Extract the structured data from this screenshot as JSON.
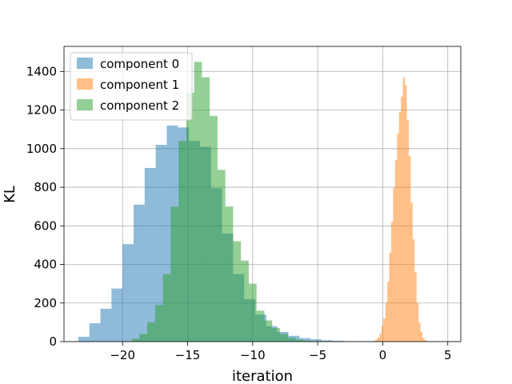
{
  "chart_data": {
    "type": "histogram",
    "title": "",
    "xlabel": "iteration",
    "ylabel": "KL",
    "xlim": [
      -24.5,
      6.0
    ],
    "ylim": [
      0,
      1530
    ],
    "xticks": [
      -20,
      -15,
      -10,
      -5,
      0,
      5
    ],
    "xtick_labels": [
      "−20",
      "−15",
      "−10",
      "−5",
      "0",
      "5"
    ],
    "yticks": [
      0,
      200,
      400,
      600,
      800,
      1000,
      1200,
      1400
    ],
    "ytick_labels": [
      "0",
      "200",
      "400",
      "600",
      "800",
      "1000",
      "1200",
      "1400"
    ],
    "grid": true,
    "legend_position": "top-left",
    "series": [
      {
        "name": "component 0",
        "color": "#1f77b4",
        "alpha": 0.5,
        "bin_start": -23.4,
        "bin_width": 0.85,
        "counts": [
          25,
          95,
          170,
          275,
          505,
          710,
          900,
          1020,
          1120,
          1110,
          1040,
          1010,
          795,
          560,
          350,
          220,
          140,
          80,
          50,
          30,
          18,
          12,
          7,
          4,
          2,
          1,
          1
        ]
      },
      {
        "name": "component 1",
        "color": "#ff7f0e",
        "alpha": 0.5,
        "bin_start": -0.7,
        "bin_width": 0.15,
        "counts": [
          5,
          10,
          20,
          40,
          80,
          120,
          200,
          310,
          460,
          620,
          800,
          940,
          1080,
          1190,
          1270,
          1370,
          1330,
          1150,
          960,
          720,
          530,
          360,
          200,
          100,
          50,
          20,
          8,
          3
        ]
      },
      {
        "name": "component 2",
        "color": "#2ca02c",
        "alpha": 0.5,
        "bin_start": -19.3,
        "bin_width": 0.6,
        "counts": [
          15,
          40,
          100,
          190,
          350,
          700,
          1040,
          1290,
          1450,
          1370,
          1170,
          890,
          700,
          520,
          420,
          300,
          160,
          110,
          70,
          40,
          20,
          10,
          5,
          2
        ]
      }
    ]
  }
}
